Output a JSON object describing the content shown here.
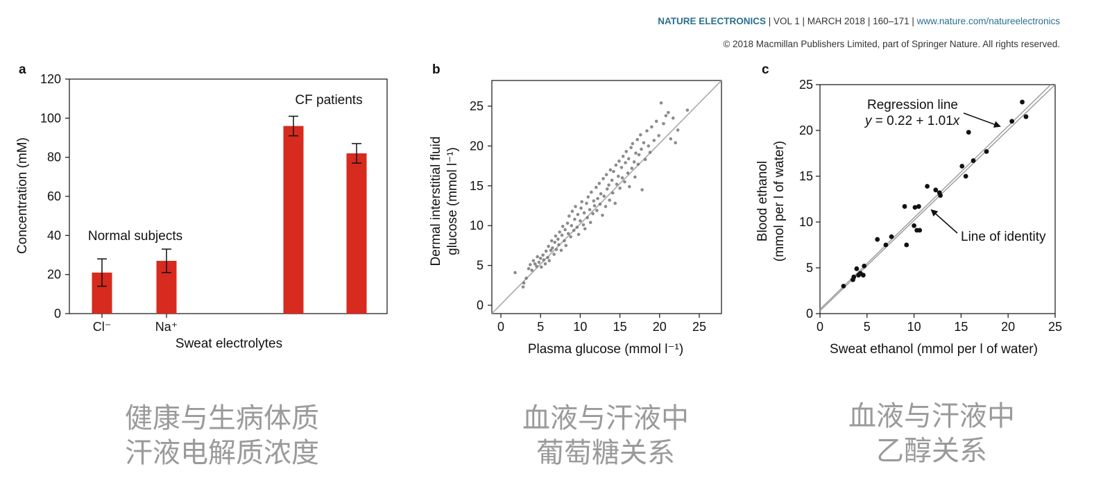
{
  "header": {
    "journal": "NATURE ELECTRONICS",
    "citation": " | VOL 1 | MARCH 2018 | 160–171 | ",
    "url": "www.nature.com/natureelectronics",
    "copyright": "© 2018 Macmillan Publishers Limited, part of Springer Nature. All rights reserved."
  },
  "captions": [
    {
      "line1": "健康与生病体质",
      "line2": "汗液电解质浓度"
    },
    {
      "line1": "血液与汗液中",
      "line2": "葡萄糖关系"
    },
    {
      "line1": "血液与汗液中",
      "line2": "乙醇关系"
    }
  ],
  "colors": {
    "bar": "#d62b1e",
    "identity_line": "#a8a8a8",
    "scatter_gray": "#777777",
    "scatter_black": "#111111",
    "header_blue": "#2a6f8e",
    "caption": "#9a9a9a"
  },
  "chart_data": [
    {
      "panel": "a",
      "type": "bar",
      "categories": [
        "Cl⁻",
        "Na⁺",
        "",
        ""
      ],
      "groups": [
        "Normal subjects",
        "CF patients"
      ],
      "values": [
        21,
        27,
        96,
        82
      ],
      "errors": [
        7,
        6,
        5,
        5
      ],
      "xlabel": "Sweat electrolytes",
      "ylabel": "Concentration (mM)",
      "ylim": [
        0,
        120
      ],
      "yticks": [
        0,
        20,
        40,
        60,
        80,
        100,
        120
      ]
    },
    {
      "panel": "b",
      "type": "scatter",
      "xlabel": "Plasma glucose (mmol l⁻¹)",
      "ylabel_line1": "Dermal interstitial fluid",
      "ylabel_line2": "glucose (mmol l⁻¹)",
      "xlim": [
        -1,
        28
      ],
      "ylim": [
        -1,
        28
      ],
      "xticks": [
        0,
        5,
        10,
        15,
        20,
        25
      ],
      "yticks": [
        0,
        5,
        10,
        15,
        20,
        25
      ],
      "identity_line": true,
      "points": [
        [
          1.8,
          4.1
        ],
        [
          2.8,
          2.3
        ],
        [
          2.9,
          2.8
        ],
        [
          3.2,
          3.4
        ],
        [
          3.5,
          4.6
        ],
        [
          3.7,
          5.1
        ],
        [
          3.9,
          4.4
        ],
        [
          4.1,
          5.6
        ],
        [
          4.3,
          5.2
        ],
        [
          4.5,
          4.9
        ],
        [
          4.6,
          6.1
        ],
        [
          4.8,
          5.4
        ],
        [
          5.0,
          5.9
        ],
        [
          5.1,
          4.8
        ],
        [
          5.3,
          6.3
        ],
        [
          5.4,
          5.7
        ],
        [
          5.6,
          5.2
        ],
        [
          5.7,
          6.8
        ],
        [
          5.9,
          6.0
        ],
        [
          6.0,
          7.4
        ],
        [
          6.1,
          5.6
        ],
        [
          6.3,
          6.9
        ],
        [
          6.4,
          8.1
        ],
        [
          6.5,
          7.2
        ],
        [
          6.7,
          6.4
        ],
        [
          6.8,
          7.9
        ],
        [
          6.9,
          8.7
        ],
        [
          7.0,
          7.0
        ],
        [
          7.2,
          8.3
        ],
        [
          7.3,
          7.6
        ],
        [
          7.4,
          9.2
        ],
        [
          7.6,
          6.9
        ],
        [
          7.7,
          8.8
        ],
        [
          7.8,
          9.9
        ],
        [
          8.0,
          8.1
        ],
        [
          8.1,
          9.5
        ],
        [
          8.2,
          7.5
        ],
        [
          8.4,
          10.3
        ],
        [
          8.5,
          9.0
        ],
        [
          8.6,
          11.2
        ],
        [
          8.8,
          8.6
        ],
        [
          8.9,
          10.0
        ],
        [
          9.0,
          11.8
        ],
        [
          9.2,
          9.4
        ],
        [
          9.3,
          10.8
        ],
        [
          9.4,
          12.4
        ],
        [
          9.6,
          9.8
        ],
        [
          9.7,
          11.4
        ],
        [
          9.8,
          8.9
        ],
        [
          10.0,
          10.6
        ],
        [
          10.1,
          12.2
        ],
        [
          10.2,
          13.0
        ],
        [
          10.4,
          10.1
        ],
        [
          10.5,
          11.6
        ],
        [
          10.6,
          9.6
        ],
        [
          10.8,
          12.8
        ],
        [
          10.9,
          11.0
        ],
        [
          11.0,
          13.6
        ],
        [
          11.2,
          12.0
        ],
        [
          11.3,
          10.4
        ],
        [
          11.4,
          14.2
        ],
        [
          11.6,
          11.5
        ],
        [
          11.7,
          13.1
        ],
        [
          11.8,
          12.5
        ],
        [
          12.0,
          14.8
        ],
        [
          12.1,
          11.9
        ],
        [
          12.2,
          13.4
        ],
        [
          12.4,
          15.3
        ],
        [
          12.5,
          12.7
        ],
        [
          12.6,
          14.0
        ],
        [
          12.8,
          11.3
        ],
        [
          12.9,
          15.9
        ],
        [
          13.0,
          13.7
        ],
        [
          13.2,
          12.4
        ],
        [
          13.3,
          16.4
        ],
        [
          13.4,
          14.6
        ],
        [
          13.6,
          15.1
        ],
        [
          13.7,
          13.2
        ],
        [
          13.8,
          17.0
        ],
        [
          14.0,
          15.7
        ],
        [
          14.1,
          14.1
        ],
        [
          14.2,
          16.8
        ],
        [
          14.4,
          12.8
        ],
        [
          14.5,
          17.6
        ],
        [
          14.6,
          15.2
        ],
        [
          14.8,
          16.2
        ],
        [
          14.9,
          18.1
        ],
        [
          15.0,
          14.7
        ],
        [
          15.2,
          17.3
        ],
        [
          15.3,
          16.0
        ],
        [
          15.4,
          18.7
        ],
        [
          15.6,
          15.5
        ],
        [
          15.7,
          17.9
        ],
        [
          15.8,
          19.3
        ],
        [
          16.0,
          16.6
        ],
        [
          16.1,
          18.4
        ],
        [
          16.2,
          14.9
        ],
        [
          16.4,
          19.8
        ],
        [
          16.5,
          17.2
        ],
        [
          16.6,
          20.3
        ],
        [
          16.8,
          18.0
        ],
        [
          16.9,
          16.1
        ],
        [
          17.0,
          19.1
        ],
        [
          17.2,
          20.8
        ],
        [
          17.3,
          17.7
        ],
        [
          17.4,
          18.9
        ],
        [
          17.6,
          21.4
        ],
        [
          17.7,
          19.6
        ],
        [
          17.8,
          14.5
        ],
        [
          18.0,
          20.4
        ],
        [
          18.2,
          18.3
        ],
        [
          18.4,
          21.9
        ],
        [
          18.6,
          20.0
        ],
        [
          18.8,
          19.2
        ],
        [
          19.0,
          22.4
        ],
        [
          19.3,
          20.7
        ],
        [
          19.6,
          23.1
        ],
        [
          19.9,
          21.3
        ],
        [
          20.2,
          25.4
        ],
        [
          20.5,
          22.8
        ],
        [
          20.8,
          23.8
        ],
        [
          21.1,
          24.2
        ],
        [
          21.4,
          20.9
        ],
        [
          21.7,
          23.5
        ],
        [
          22.0,
          20.4
        ],
        [
          22.3,
          22.0
        ],
        [
          23.5,
          24.5
        ]
      ]
    },
    {
      "panel": "c",
      "type": "scatter",
      "xlabel": "Sweat ethanol (mmol per l of water)",
      "ylabel_line1": "Blood ethanol",
      "ylabel_line2": "(mmol per l of water)",
      "xlim": [
        0,
        25
      ],
      "ylim": [
        0,
        25
      ],
      "xticks": [
        0,
        5,
        10,
        15,
        20,
        25
      ],
      "yticks": [
        0,
        5,
        10,
        15,
        20,
        25
      ],
      "regression": {
        "intercept": 0.22,
        "slope": 1.01
      },
      "annotations": {
        "regression_label": "Regression line",
        "regression_eq_y": "y",
        "regression_eq_mid": " = 0.22 + 1.01",
        "regression_eq_x": "x",
        "identity_label": "Line of identity"
      },
      "points": [
        [
          2.5,
          3.0
        ],
        [
          3.5,
          3.7
        ],
        [
          3.6,
          4.0
        ],
        [
          3.9,
          4.9
        ],
        [
          4.1,
          4.2
        ],
        [
          4.3,
          4.4
        ],
        [
          4.6,
          4.2
        ],
        [
          4.7,
          5.2
        ],
        [
          6.1,
          8.1
        ],
        [
          7.0,
          7.5
        ],
        [
          7.6,
          8.4
        ],
        [
          9.0,
          11.7
        ],
        [
          9.2,
          7.5
        ],
        [
          10.0,
          9.6
        ],
        [
          10.1,
          11.6
        ],
        [
          10.3,
          9.1
        ],
        [
          10.5,
          11.7
        ],
        [
          10.6,
          9.1
        ],
        [
          11.4,
          13.9
        ],
        [
          12.3,
          13.5
        ],
        [
          12.7,
          13.2
        ],
        [
          12.8,
          12.9
        ],
        [
          15.1,
          16.1
        ],
        [
          15.5,
          15.0
        ],
        [
          15.8,
          19.8
        ],
        [
          16.3,
          16.7
        ],
        [
          17.7,
          17.7
        ],
        [
          20.4,
          21.0
        ],
        [
          21.5,
          23.1
        ],
        [
          21.9,
          21.5
        ]
      ]
    }
  ]
}
